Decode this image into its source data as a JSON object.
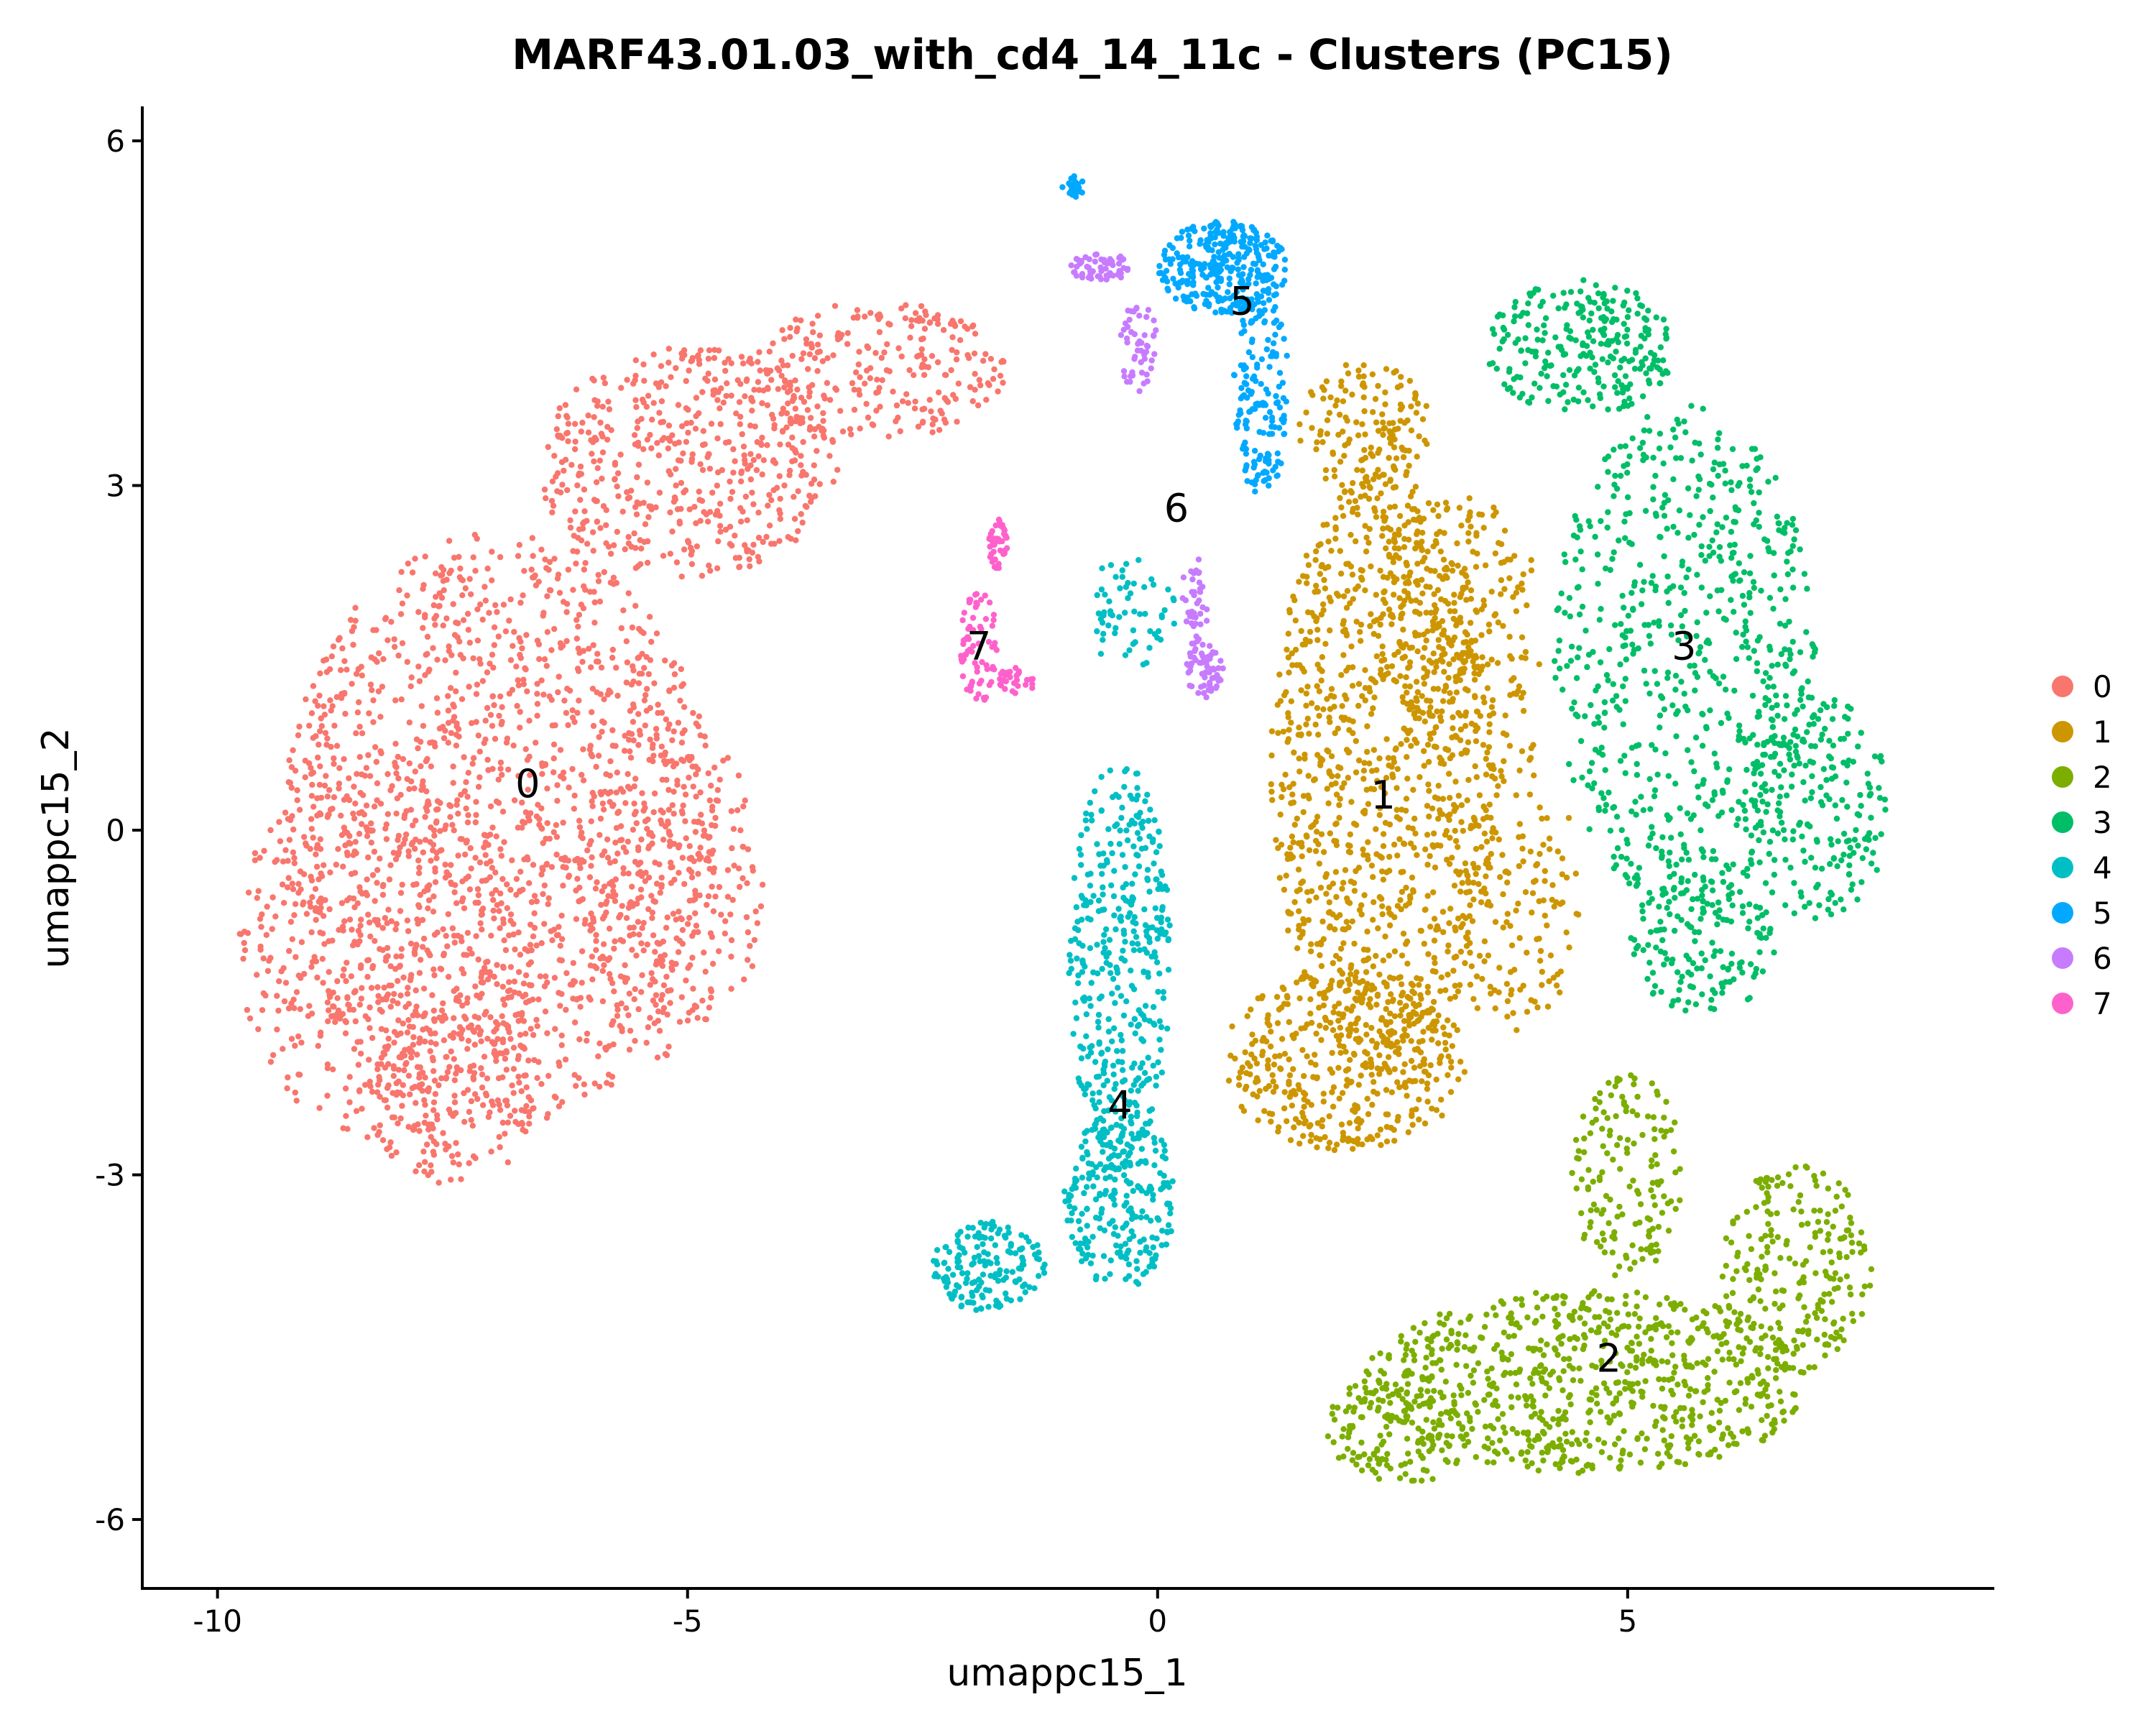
{
  "chart_data": {
    "type": "scatter",
    "title": "MARF43.01.03_with_cd4_14_11c - Clusters (PC15)",
    "xlabel": "umappc15_1",
    "ylabel": "umappc15_2",
    "xlim": [
      -10.8,
      8.9
    ],
    "ylim": [
      -6.6,
      6.3
    ],
    "x_ticks": [
      -10,
      -5,
      0,
      5
    ],
    "x_tick_labels": [
      "-10",
      "-5",
      "0",
      "5"
    ],
    "y_ticks": [
      -6,
      -3,
      0,
      3,
      6
    ],
    "y_tick_labels": [
      "-6",
      "-3",
      "0",
      "3",
      "6"
    ],
    "grid": false,
    "legend_position": "right",
    "series": [
      {
        "name": "0",
        "color": "#F8766D",
        "label_pos": [
          -6.7,
          0.4
        ],
        "regions": [
          [
            -7.0,
            0.0,
            2.3,
            2.6,
            1400
          ],
          [
            -8.2,
            -1.0,
            1.6,
            1.7,
            450
          ],
          [
            -5.0,
            3.2,
            1.6,
            1.0,
            500
          ],
          [
            -3.0,
            4.0,
            1.4,
            0.6,
            260
          ],
          [
            -7.5,
            -2.3,
            0.9,
            0.8,
            170
          ],
          [
            -5.2,
            -0.5,
            1.0,
            1.5,
            260
          ]
        ]
      },
      {
        "name": "1",
        "color": "#CD9600",
        "label_pos": [
          2.4,
          0.3
        ],
        "regions": [
          [
            2.4,
            0.5,
            1.2,
            2.6,
            1000
          ],
          [
            2.0,
            -2.0,
            1.3,
            0.8,
            400
          ],
          [
            3.2,
            1.8,
            0.9,
            1.2,
            260
          ],
          [
            2.2,
            3.5,
            0.7,
            0.6,
            150
          ],
          [
            3.8,
            -0.5,
            0.7,
            1.3,
            160
          ]
        ]
      },
      {
        "name": "2",
        "color": "#7CAE00",
        "label_pos": [
          4.8,
          -4.6
        ],
        "regions": [
          [
            4.6,
            -4.8,
            2.4,
            0.8,
            750
          ],
          [
            6.8,
            -3.8,
            0.8,
            0.9,
            220
          ],
          [
            5.0,
            -3.0,
            0.6,
            0.9,
            150
          ],
          [
            2.6,
            -5.2,
            0.8,
            0.5,
            150
          ]
        ]
      },
      {
        "name": "3",
        "color": "#00BE67",
        "label_pos": [
          5.6,
          1.6
        ],
        "regions": [
          [
            5.6,
            1.5,
            1.4,
            2.2,
            650
          ],
          [
            4.5,
            4.2,
            1.0,
            0.6,
            260
          ],
          [
            7.0,
            0.2,
            0.8,
            1.0,
            220
          ],
          [
            5.8,
            -1.0,
            0.8,
            0.6,
            160
          ]
        ]
      },
      {
        "name": "4",
        "color": "#00BFC4",
        "label_pos": [
          -0.4,
          -2.4
        ],
        "regions": [
          [
            -0.4,
            -1.2,
            0.55,
            1.8,
            400
          ],
          [
            -0.4,
            -3.2,
            0.6,
            0.8,
            250
          ],
          [
            -1.8,
            -3.8,
            0.6,
            0.4,
            160
          ],
          [
            -0.3,
            1.9,
            0.5,
            0.5,
            60
          ]
        ]
      },
      {
        "name": "5",
        "color": "#00A9FF",
        "label_pos": [
          0.9,
          4.6
        ],
        "regions": [
          [
            0.7,
            4.9,
            0.7,
            0.4,
            320
          ],
          [
            1.1,
            3.8,
            0.3,
            0.9,
            160
          ],
          [
            -0.9,
            5.6,
            0.12,
            0.1,
            25
          ]
        ]
      },
      {
        "name": "6",
        "color": "#C77CFF",
        "label_pos": [
          0.2,
          2.8
        ],
        "regions": [
          [
            -0.6,
            4.9,
            0.35,
            0.12,
            60
          ],
          [
            0.5,
            1.4,
            0.2,
            0.25,
            60
          ],
          [
            -0.2,
            4.2,
            0.2,
            0.4,
            50
          ],
          [
            0.4,
            2.0,
            0.15,
            0.4,
            40
          ]
        ]
      },
      {
        "name": "7",
        "color": "#FF61CC",
        "label_pos": [
          -1.9,
          1.6
        ],
        "regions": [
          [
            -1.9,
            1.6,
            0.2,
            0.5,
            70
          ],
          [
            -1.7,
            2.5,
            0.1,
            0.25,
            40
          ],
          [
            -1.5,
            1.3,
            0.2,
            0.12,
            30
          ]
        ]
      }
    ]
  }
}
